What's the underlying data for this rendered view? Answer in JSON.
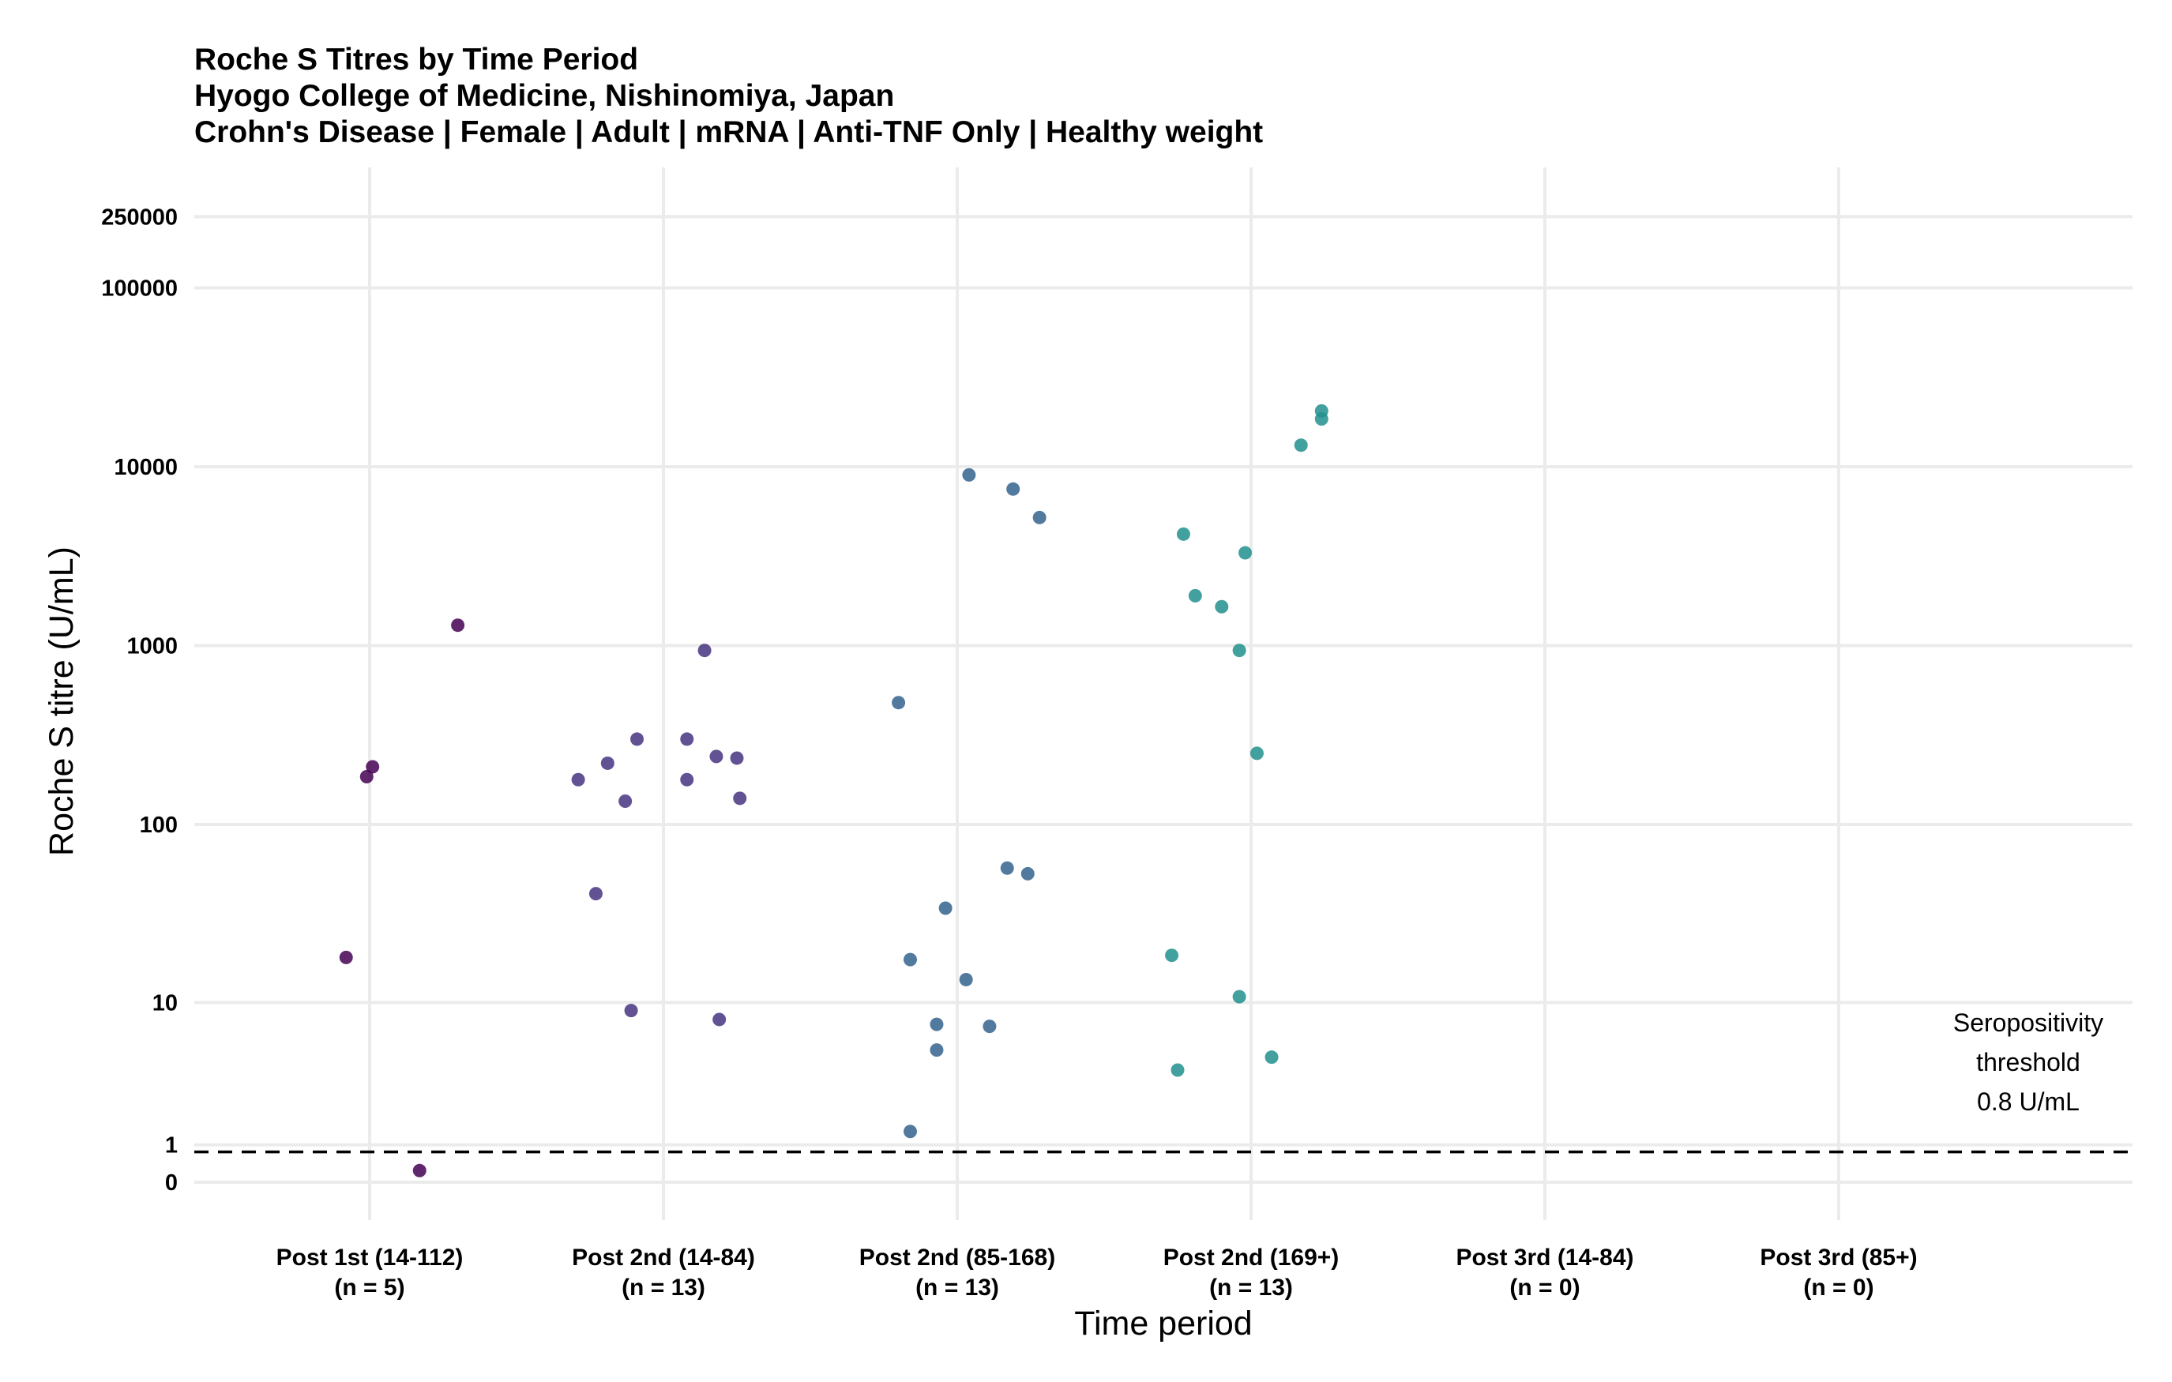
{
  "chart_data": {
    "type": "scatter",
    "title": "Roche S Titres by Time Period",
    "subtitle": [
      "Hyogo College of Medicine, Nishinomiya, Japan",
      "Crohn's Disease | Female | Adult | mRNA | Anti-TNF Only | Healthy weight"
    ],
    "xlabel": "Time period",
    "ylabel": "Roche S titre (U/mL)",
    "y_scale": "pseudo-log",
    "y_ticks": [
      {
        "value": 0,
        "label": "0"
      },
      {
        "value": 1,
        "label": "1"
      },
      {
        "value": 10,
        "label": "10"
      },
      {
        "value": 100,
        "label": "100"
      },
      {
        "value": 1000,
        "label": "1000"
      },
      {
        "value": 10000,
        "label": "10000"
      },
      {
        "value": 100000,
        "label": "100000"
      },
      {
        "value": 250000,
        "label": "250000"
      }
    ],
    "categories": [
      {
        "label": "Post 1st (14-112)",
        "n_label": "(n = 5)"
      },
      {
        "label": "Post 2nd (14-84)",
        "n_label": "(n = 13)"
      },
      {
        "label": "Post 2nd (85-168)",
        "n_label": "(n = 13)"
      },
      {
        "label": "Post 2nd (169+)",
        "n_label": "(n = 13)"
      },
      {
        "label": "Post 3rd (14-84)",
        "n_label": "(n = 0)"
      },
      {
        "label": "Post 3rd (85+)",
        "n_label": "(n = 0)"
      }
    ],
    "series": [
      {
        "category": "Post 1st (14-112)",
        "color": "#440154",
        "points": [
          {
            "x": 0.3,
            "y": 1300
          },
          {
            "x": 0.01,
            "y": 210
          },
          {
            "x": -0.01,
            "y": 185
          },
          {
            "x": -0.08,
            "y": 18
          },
          {
            "x": 0.17,
            "y": 0.3
          }
        ]
      },
      {
        "category": "Post 2nd (14-84)",
        "color": "#463480",
        "points": [
          {
            "x": 0.14,
            "y": 940
          },
          {
            "x": -0.09,
            "y": 300
          },
          {
            "x": 0.08,
            "y": 300
          },
          {
            "x": 0.18,
            "y": 240
          },
          {
            "x": 0.25,
            "y": 235
          },
          {
            "x": -0.19,
            "y": 220
          },
          {
            "x": -0.29,
            "y": 178
          },
          {
            "x": 0.08,
            "y": 178
          },
          {
            "x": -0.13,
            "y": 135
          },
          {
            "x": 0.26,
            "y": 140
          },
          {
            "x": -0.23,
            "y": 41
          },
          {
            "x": -0.11,
            "y": 9
          },
          {
            "x": 0.19,
            "y": 8
          }
        ]
      },
      {
        "category": "Post 2nd (85-168)",
        "color": "#33638D",
        "points": [
          {
            "x": 0.04,
            "y": 9000
          },
          {
            "x": 0.19,
            "y": 7500
          },
          {
            "x": 0.28,
            "y": 5200
          },
          {
            "x": -0.2,
            "y": 480
          },
          {
            "x": 0.17,
            "y": 57
          },
          {
            "x": 0.24,
            "y": 53
          },
          {
            "x": -0.04,
            "y": 34
          },
          {
            "x": -0.16,
            "y": 17.5
          },
          {
            "x": 0.03,
            "y": 13.5
          },
          {
            "x": -0.07,
            "y": 7.5
          },
          {
            "x": 0.11,
            "y": 7.3
          },
          {
            "x": -0.07,
            "y": 5.3
          },
          {
            "x": -0.16,
            "y": 1.4
          }
        ]
      },
      {
        "category": "Post 2nd (169+)",
        "color": "#21908D",
        "points": [
          {
            "x": 0.24,
            "y": 20500
          },
          {
            "x": 0.24,
            "y": 18500
          },
          {
            "x": 0.17,
            "y": 13200
          },
          {
            "x": -0.23,
            "y": 4200
          },
          {
            "x": -0.02,
            "y": 3300
          },
          {
            "x": -0.19,
            "y": 1900
          },
          {
            "x": -0.1,
            "y": 1650
          },
          {
            "x": -0.04,
            "y": 940
          },
          {
            "x": 0.02,
            "y": 250
          },
          {
            "x": -0.27,
            "y": 18.5
          },
          {
            "x": -0.04,
            "y": 10.8
          },
          {
            "x": 0.07,
            "y": 4.8
          },
          {
            "x": -0.25,
            "y": 4
          }
        ]
      }
    ],
    "threshold": {
      "value": 0.8,
      "style": "dashed",
      "label_lines": [
        "Seropositivity",
        "threshold",
        "0.8 U/mL"
      ]
    },
    "grid": true,
    "legend": "none"
  }
}
